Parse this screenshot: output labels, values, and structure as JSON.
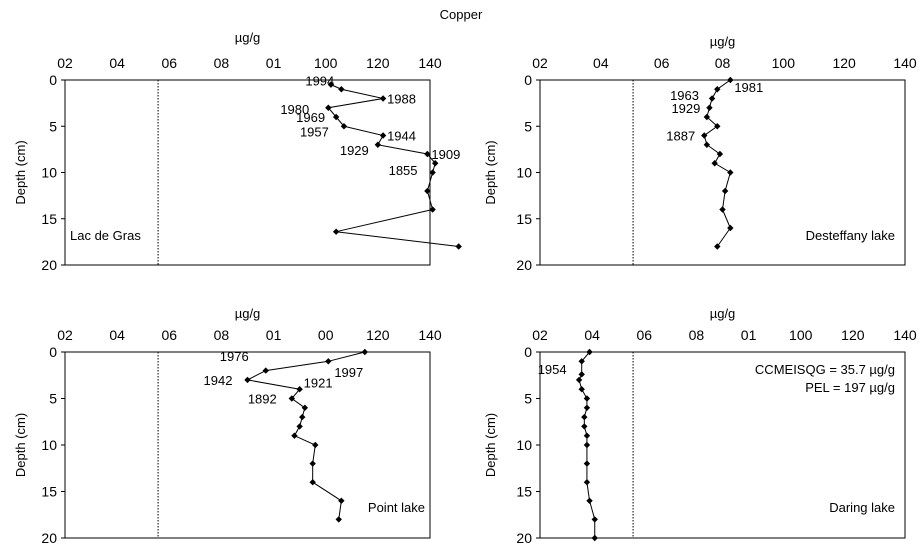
{
  "figure_title": "Copper",
  "colors": {
    "line": "#000000",
    "marker": "#000000",
    "threshold": "#000000",
    "background": "#ffffff"
  },
  "chart_data": [
    {
      "type": "line",
      "panel": "Lac de Gras",
      "xlabel": "µg/g",
      "ylabel": "Depth (cm)",
      "x_ticks": [
        "02",
        "04",
        "06",
        "08",
        "01",
        "100",
        "120",
        "140"
      ],
      "y_ticks": [
        "0",
        "5",
        "10",
        "15",
        "20"
      ],
      "xlim": [
        0,
        140
      ],
      "ylim": [
        0,
        20
      ],
      "y_inverted": true,
      "threshold_line_x": 35.7,
      "lake_label": "Lac de Gras",
      "series": [
        {
          "points": [
            [
              102,
              0.5
            ],
            [
              106,
              1
            ],
            [
              122,
              2
            ],
            [
              101,
              3
            ],
            [
              104,
              4
            ],
            [
              107,
              5
            ],
            [
              122,
              6
            ],
            [
              120,
              7
            ],
            [
              139,
              8
            ],
            [
              142,
              9
            ],
            [
              141,
              10
            ],
            [
              139,
              12
            ],
            [
              141,
              14
            ],
            [
              104,
              16.4
            ],
            [
              151,
              18
            ]
          ]
        }
      ],
      "annotations": [
        {
          "text": "1994",
          "x": 106,
          "y": 1
        },
        {
          "text": "1988",
          "x": 122,
          "y": 2
        },
        {
          "text": "1980",
          "x": 101,
          "y": 3
        },
        {
          "text": "1969",
          "x": 104,
          "y": 4
        },
        {
          "text": "1957",
          "x": 107,
          "y": 5
        },
        {
          "text": "1944",
          "x": 122,
          "y": 6
        },
        {
          "text": "1929",
          "x": 120,
          "y": 7
        },
        {
          "text": "1909",
          "x": 139,
          "y": 8
        },
        {
          "text": "1855",
          "x": 141,
          "y": 9.6
        }
      ]
    },
    {
      "type": "line",
      "panel": "Desteffany lake",
      "xlabel": "µg/g",
      "ylabel": "Depth (cm)",
      "x_ticks": [
        "02",
        "04",
        "06",
        "08",
        "100",
        "120",
        "140"
      ],
      "y_ticks": [
        "0",
        "5",
        "10",
        "15",
        "20"
      ],
      "xlim": [
        0,
        140
      ],
      "ylim": [
        0,
        20
      ],
      "y_inverted": true,
      "threshold_line_x": 35.7,
      "lake_label": "Desteffany lake",
      "series": [
        {
          "points": [
            [
              73,
              0
            ],
            [
              68,
              1
            ],
            [
              66,
              2
            ],
            [
              65,
              3
            ],
            [
              64,
              4
            ],
            [
              68,
              5
            ],
            [
              63,
              6
            ],
            [
              64,
              7
            ],
            [
              69,
              8
            ],
            [
              67,
              9
            ],
            [
              73,
              10
            ],
            [
              71,
              12
            ],
            [
              70,
              14
            ],
            [
              73,
              16
            ],
            [
              68,
              18
            ]
          ]
        }
      ],
      "annotations": [
        {
          "text": "1981",
          "x": 73,
          "y": 0
        },
        {
          "text": "1963",
          "x": 66,
          "y": 1.5
        },
        {
          "text": "1929",
          "x": 65,
          "y": 3
        },
        {
          "text": "1887",
          "x": 63,
          "y": 6
        }
      ]
    },
    {
      "type": "line",
      "panel": "Point lake",
      "xlabel": "µg/g",
      "ylabel": "Depth (cm)",
      "x_ticks": [
        "02",
        "04",
        "06",
        "08",
        "01",
        "00",
        "120",
        "140"
      ],
      "y_ticks": [
        "0",
        "5",
        "10",
        "15",
        "20"
      ],
      "xlim": [
        0,
        140
      ],
      "ylim": [
        0,
        20
      ],
      "y_inverted": true,
      "threshold_line_x": 35.7,
      "lake_label": "Point lake",
      "series": [
        {
          "points": [
            [
              115,
              0
            ],
            [
              101,
              1
            ],
            [
              77,
              2
            ],
            [
              70,
              3
            ],
            [
              90,
              4
            ],
            [
              87,
              5
            ],
            [
              92,
              6
            ],
            [
              91,
              7
            ],
            [
              90,
              8
            ],
            [
              88,
              9
            ],
            [
              96,
              10
            ],
            [
              95,
              12
            ],
            [
              95,
              14
            ],
            [
              106,
              16
            ],
            [
              105,
              18
            ]
          ]
        }
      ],
      "annotations": [
        {
          "text": "1976",
          "x": 77,
          "y": 1.2
        },
        {
          "text": "1997",
          "x": 101,
          "y": 1.6
        },
        {
          "text": "1942",
          "x": 70,
          "y": 3
        },
        {
          "text": "1921",
          "x": 90,
          "y": 3.8
        },
        {
          "text": "1892",
          "x": 87,
          "y": 5
        }
      ]
    },
    {
      "type": "line",
      "panel": "Daring lake",
      "xlabel": "µg/g",
      "ylabel": "Depth (cm)",
      "x_ticks": [
        "02",
        "04",
        "06",
        "08",
        "01",
        "100",
        "120",
        "140"
      ],
      "y_ticks": [
        "0",
        "5",
        "10",
        "15",
        "20"
      ],
      "xlim": [
        0,
        140
      ],
      "ylim": [
        0,
        20
      ],
      "y_inverted": true,
      "threshold_line_x": 35.7,
      "lake_label": "Daring lake",
      "notes": [
        "CCMEISQG = 35.7 µg/g",
        "PEL = 197 µg/g"
      ],
      "series": [
        {
          "points": [
            [
              19,
              0
            ],
            [
              16,
              1
            ],
            [
              16,
              2.4
            ],
            [
              15,
              3
            ],
            [
              16,
              4
            ],
            [
              18,
              5
            ],
            [
              18,
              6
            ],
            [
              17,
              7
            ],
            [
              17,
              8
            ],
            [
              18,
              9
            ],
            [
              18,
              10
            ],
            [
              18,
              12
            ],
            [
              18,
              14
            ],
            [
              19,
              16
            ],
            [
              21,
              18
            ],
            [
              21,
              20
            ]
          ]
        }
      ],
      "annotations": [
        {
          "text": "1954",
          "x": 16,
          "y": 1.3
        }
      ]
    }
  ]
}
